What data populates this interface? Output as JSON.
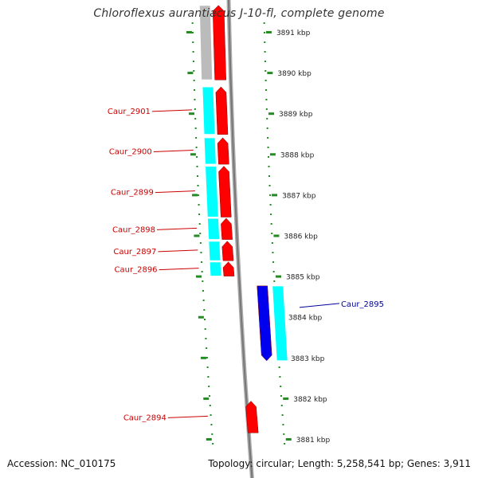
{
  "title": "Chloroflexus aurantiacus J-10-fl, complete genome",
  "footer": {
    "accession": "Accession: NC_010175",
    "summary": "Topology: circular; Length: 5,258,541 bp; Genes: 3,911"
  },
  "colors": {
    "forward_strand_gene": "#ff0000",
    "reverse_strand_gene": "#0000ee",
    "cds_feature": "#00ffff",
    "other_feature": "#bbbbbb",
    "tick_marks": "#228b22",
    "backbone": "#999999",
    "label_forward": "#cc0000",
    "label_reverse": "#000099"
  },
  "scale_labels": [
    "3891 kbp",
    "3890 kbp",
    "3889 kbp",
    "3888 kbp",
    "3887 kbp",
    "3886 kbp",
    "3885 kbp",
    "3884 kbp",
    "3883 kbp",
    "3882 kbp",
    "3881 kbp"
  ],
  "scale_positions_kbp": [
    3891,
    3890,
    3889,
    3888,
    3887,
    3886,
    3885,
    3884,
    3883,
    3882,
    3881
  ],
  "genes": [
    {
      "name": "Caur_2901",
      "strand": "forward",
      "start_kbp": 3889.65,
      "end_kbp": 3888.48
    },
    {
      "name": "Caur_2900",
      "strand": "forward",
      "start_kbp": 3888.4,
      "end_kbp": 3887.75
    },
    {
      "name": "Caur_2899",
      "strand": "forward",
      "start_kbp": 3887.7,
      "end_kbp": 3886.45
    },
    {
      "name": "Caur_2898",
      "strand": "forward",
      "start_kbp": 3886.42,
      "end_kbp": 3885.9
    },
    {
      "name": "Caur_2897",
      "strand": "forward",
      "start_kbp": 3885.86,
      "end_kbp": 3885.38
    },
    {
      "name": "Caur_2896",
      "strand": "forward",
      "start_kbp": 3885.35,
      "end_kbp": 3885.0
    },
    {
      "name": "Caur_2895",
      "strand": "reverse",
      "start_kbp": 3884.76,
      "end_kbp": 3882.92
    },
    {
      "name": "Caur_2894",
      "strand": "forward",
      "start_kbp": 3881.93,
      "end_kbp": 3881.15
    }
  ],
  "upstream_feature": {
    "start_kbp": 3891.65,
    "end_kbp": 3889.82
  }
}
